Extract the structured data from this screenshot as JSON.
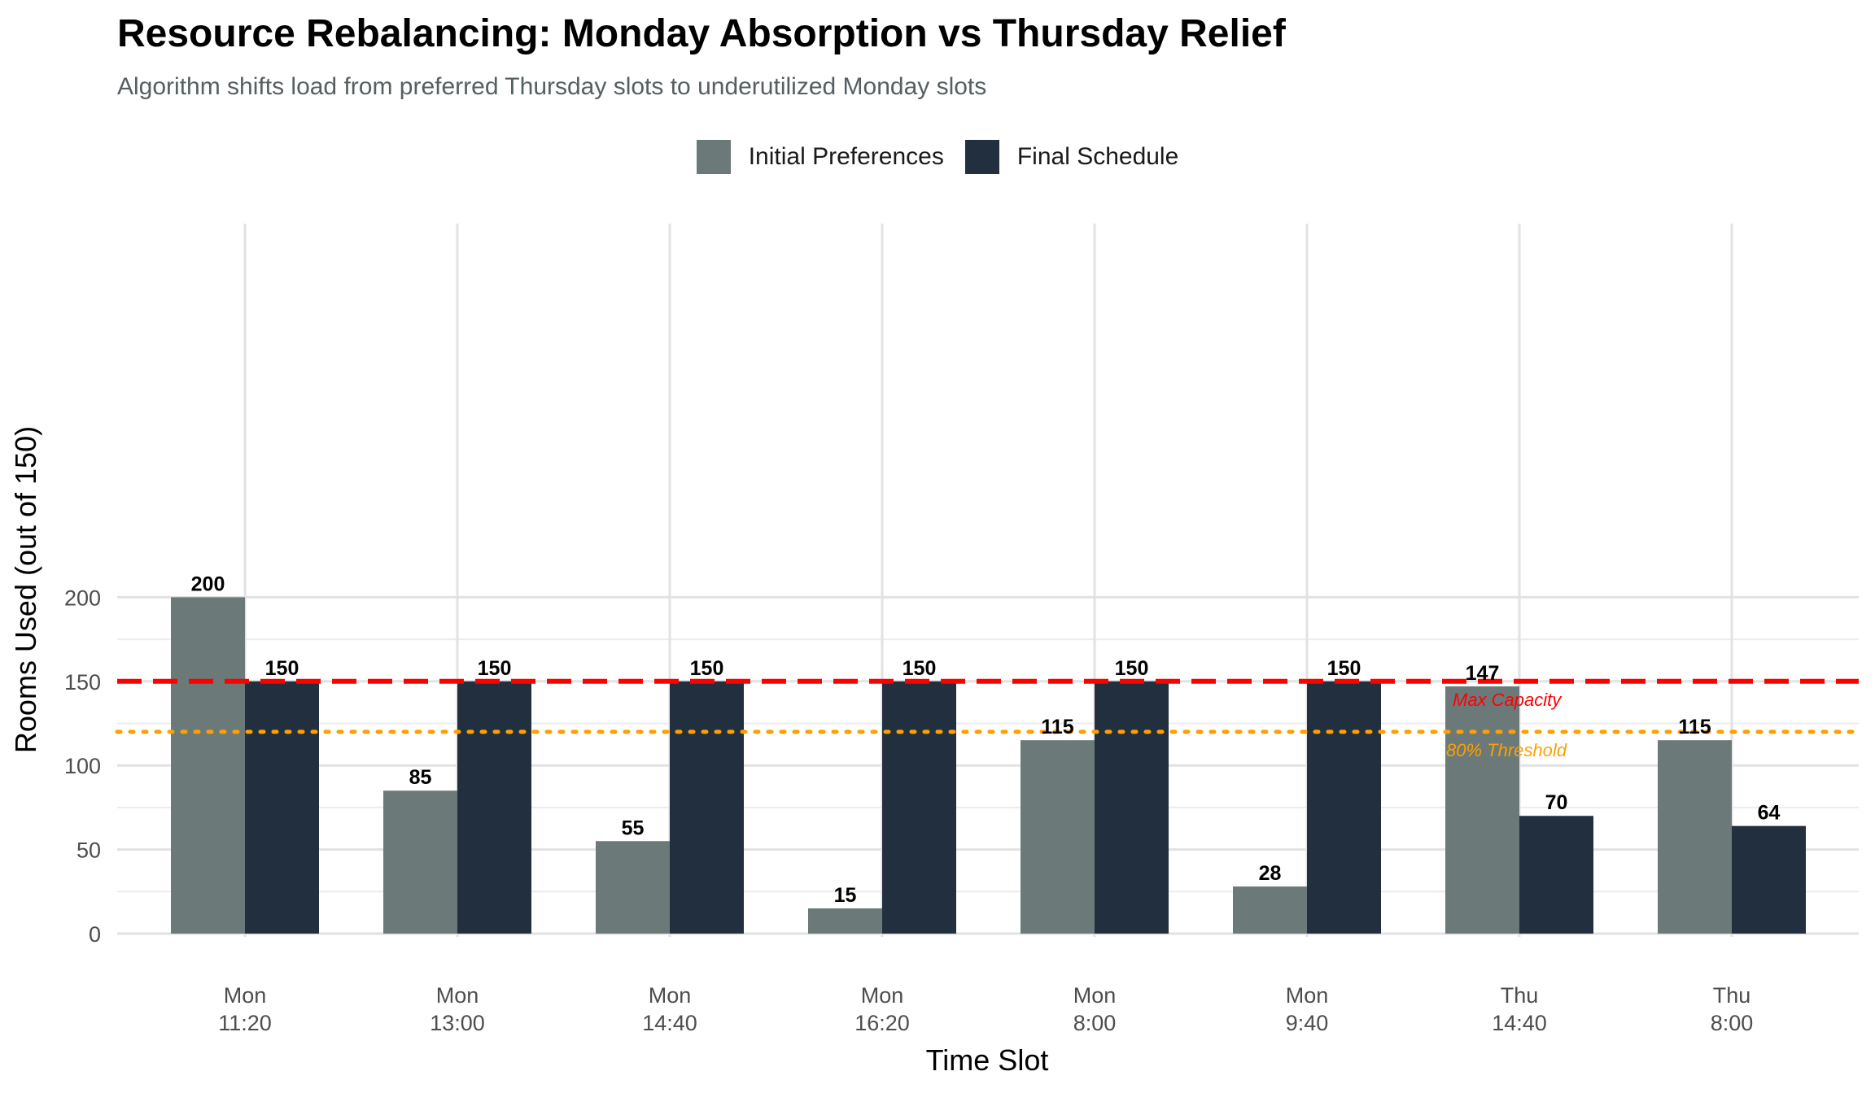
{
  "chart_data": {
    "type": "bar",
    "title": "Resource Rebalancing: Monday Absorption vs Thursday Relief",
    "subtitle": "Algorithm shifts load from preferred Thursday slots to underutilized Monday slots",
    "xlabel": "Time Slot",
    "ylabel": "Rooms Used (out of 150)",
    "ylim": [
      0,
      215
    ],
    "yticks": [
      0,
      50,
      100,
      150,
      200
    ],
    "categories": [
      [
        "Mon",
        "11:20"
      ],
      [
        "Mon",
        "13:00"
      ],
      [
        "Mon",
        "14:40"
      ],
      [
        "Mon",
        "16:20"
      ],
      [
        "Mon",
        "8:00"
      ],
      [
        "Mon",
        "9:40"
      ],
      [
        "Thu",
        "14:40"
      ],
      [
        "Thu",
        "8:00"
      ]
    ],
    "series": [
      {
        "name": "Initial Preferences",
        "color": "#6b7a79",
        "values": [
          200,
          85,
          55,
          15,
          115,
          28,
          147,
          115
        ]
      },
      {
        "name": "Final Schedule",
        "color": "#222f3e",
        "values": [
          150,
          150,
          150,
          150,
          150,
          150,
          70,
          64
        ]
      }
    ],
    "reference_lines": [
      {
        "value": 150,
        "label": "Max Capacity",
        "color": "#ff0000",
        "style": "dashed"
      },
      {
        "value": 120,
        "label": "80% Threshold",
        "color": "#ff9f00",
        "style": "dotted"
      }
    ],
    "grid": true,
    "legend_position": "top"
  }
}
